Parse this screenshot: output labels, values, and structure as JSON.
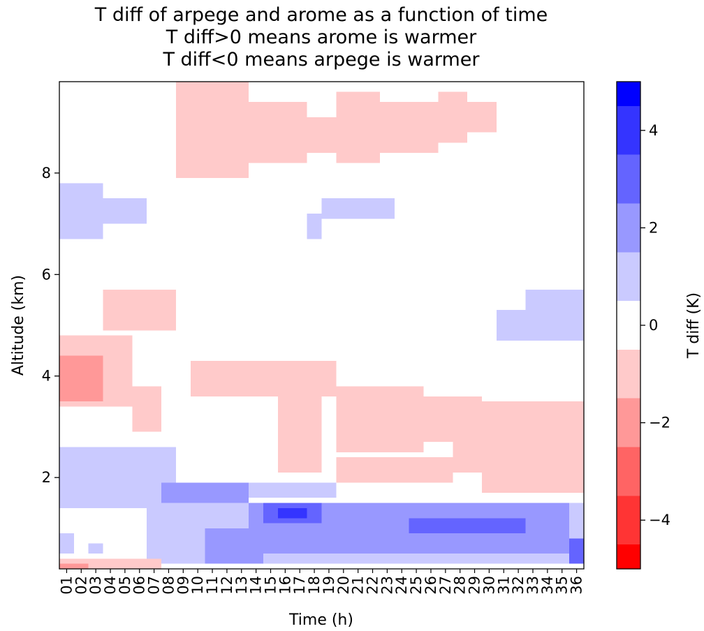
{
  "chart_data": {
    "type": "heatmap",
    "title": [
      "T diff of arpege and arome as a function of time",
      "T diff>0 means arome is warmer",
      "T diff<0 means arpege is warmer"
    ],
    "xlabel": "Time (h)",
    "ylabel": "Altitude (km)",
    "x_categories": [
      "01",
      "02",
      "03",
      "04",
      "05",
      "06",
      "07",
      "08",
      "09",
      "10",
      "11",
      "12",
      "13",
      "14",
      "15",
      "16",
      "17",
      "18",
      "19",
      "20",
      "21",
      "22",
      "23",
      "24",
      "25",
      "26",
      "27",
      "28",
      "29",
      "30",
      "31",
      "32",
      "33",
      "34",
      "35",
      "36"
    ],
    "y_range": [
      0.2,
      9.8
    ],
    "y_ticks": [
      2,
      4,
      6,
      8
    ],
    "colorbar": {
      "label": "T diff (K)",
      "range": [
        -5,
        5
      ],
      "ticks": [
        -4,
        -2,
        0,
        2,
        4
      ],
      "levels": [
        -5,
        -4.5,
        -3.5,
        -2.5,
        -1.5,
        -0.5,
        0.5,
        1.5,
        2.5,
        3.5,
        4.5,
        5
      ],
      "colors": [
        "#ff0000",
        "#ff3434",
        "#ff6464",
        "#ff9898",
        "#ffcaca",
        "#ffffff",
        "#cacaff",
        "#9898ff",
        "#6464ff",
        "#3434ff",
        "#0000ff"
      ]
    },
    "regions": [
      {
        "value": -1,
        "x": [
          9,
          14
        ],
        "y": [
          7.9,
          9.8
        ]
      },
      {
        "value": -1,
        "x": [
          14,
          18
        ],
        "y": [
          8.2,
          9.4
        ]
      },
      {
        "value": -1,
        "x": [
          18,
          20
        ],
        "y": [
          8.4,
          9.1
        ]
      },
      {
        "value": -1,
        "x": [
          20,
          23
        ],
        "y": [
          8.2,
          9.6
        ]
      },
      {
        "value": -1,
        "x": [
          23,
          27
        ],
        "y": [
          8.4,
          9.4
        ]
      },
      {
        "value": -1,
        "x": [
          27,
          29
        ],
        "y": [
          8.6,
          9.6
        ]
      },
      {
        "value": -1,
        "x": [
          29,
          31
        ],
        "y": [
          8.8,
          9.4
        ]
      },
      {
        "value": 1,
        "x": [
          1,
          4
        ],
        "y": [
          6.7,
          7.8
        ]
      },
      {
        "value": 1,
        "x": [
          4,
          7
        ],
        "y": [
          7.0,
          7.5
        ]
      },
      {
        "value": 1,
        "x": [
          18,
          19
        ],
        "y": [
          6.7,
          7.2
        ]
      },
      {
        "value": 1,
        "x": [
          19,
          24
        ],
        "y": [
          7.1,
          7.5
        ]
      },
      {
        "value": 1,
        "x": [
          31,
          33
        ],
        "y": [
          4.7,
          5.3
        ]
      },
      {
        "value": 1,
        "x": [
          33,
          37
        ],
        "y": [
          4.7,
          5.7
        ]
      },
      {
        "value": -1,
        "x": [
          4,
          9
        ],
        "y": [
          4.9,
          5.7
        ]
      },
      {
        "value": -1,
        "x": [
          1,
          6
        ],
        "y": [
          3.4,
          4.8
        ]
      },
      {
        "value": -1,
        "x": [
          6,
          8
        ],
        "y": [
          2.9,
          3.8
        ]
      },
      {
        "value": -2,
        "x": [
          1,
          4
        ],
        "y": [
          3.5,
          4.4
        ]
      },
      {
        "value": -1,
        "x": [
          10,
          20
        ],
        "y": [
          3.6,
          4.3
        ]
      },
      {
        "value": -1,
        "x": [
          16,
          19
        ],
        "y": [
          2.1,
          3.6
        ]
      },
      {
        "value": -1,
        "x": [
          20,
          26
        ],
        "y": [
          2.5,
          3.8
        ]
      },
      {
        "value": -1,
        "x": [
          20,
          28
        ],
        "y": [
          1.9,
          2.4
        ]
      },
      {
        "value": -1,
        "x": [
          26,
          30
        ],
        "y": [
          2.7,
          3.6
        ]
      },
      {
        "value": -1,
        "x": [
          30,
          37
        ],
        "y": [
          1.7,
          3.5
        ]
      },
      {
        "value": -1,
        "x": [
          28,
          31
        ],
        "y": [
          2.1,
          2.7
        ]
      },
      {
        "value": 1,
        "x": [
          1,
          9
        ],
        "y": [
          1.8,
          2.6
        ]
      },
      {
        "value": 1,
        "x": [
          1,
          14
        ],
        "y": [
          1.4,
          1.9
        ]
      },
      {
        "value": 1,
        "x": [
          14,
          20
        ],
        "y": [
          1.6,
          1.9
        ]
      },
      {
        "value": 1,
        "x": [
          7,
          37
        ],
        "y": [
          0.3,
          1.5
        ]
      },
      {
        "value": 2,
        "x": [
          8,
          14
        ],
        "y": [
          1.5,
          1.9
        ]
      },
      {
        "value": 2,
        "x": [
          14,
          36
        ],
        "y": [
          0.5,
          1.5
        ]
      },
      {
        "value": 2,
        "x": [
          11,
          15
        ],
        "y": [
          0.3,
          1.0
        ]
      },
      {
        "value": 3,
        "x": [
          15,
          19
        ],
        "y": [
          1.1,
          1.5
        ]
      },
      {
        "value": 4,
        "x": [
          16,
          18
        ],
        "y": [
          1.2,
          1.4
        ]
      },
      {
        "value": 3,
        "x": [
          25,
          33
        ],
        "y": [
          0.9,
          1.2
        ]
      },
      {
        "value": 3,
        "x": [
          36,
          37
        ],
        "y": [
          0.3,
          0.8
        ]
      },
      {
        "value": 1,
        "x": [
          1,
          2
        ],
        "y": [
          0.5,
          0.9
        ]
      },
      {
        "value": 1,
        "x": [
          3,
          4
        ],
        "y": [
          0.5,
          0.7
        ]
      },
      {
        "value": -1,
        "x": [
          1,
          8
        ],
        "y": [
          0.2,
          0.4
        ]
      },
      {
        "value": -2,
        "x": [
          1,
          3
        ],
        "y": [
          0.2,
          0.3
        ]
      }
    ]
  }
}
